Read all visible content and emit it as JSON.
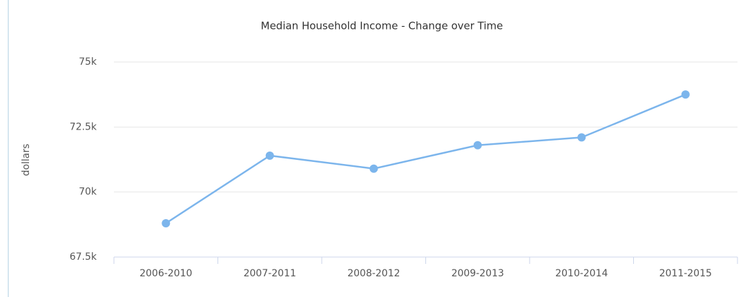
{
  "chart_data": {
    "type": "line",
    "title": "Median Household Income - Change over Time",
    "y_label": "dollars",
    "categories": [
      "2006-2010",
      "2007-2011",
      "2008-2012",
      "2009-2013",
      "2010-2014",
      "2011-2015"
    ],
    "series": [
      {
        "name": "Median Household Income",
        "color": "#7cb5ec",
        "values": [
          68800,
          71400,
          70900,
          71800,
          72100,
          73750
        ]
      }
    ],
    "ylim": [
      67500,
      75000
    ],
    "yticks": [
      {
        "value": 67500,
        "label": "67.5k"
      },
      {
        "value": 70000,
        "label": "70k"
      },
      {
        "value": 72500,
        "label": "72.5k"
      },
      {
        "value": 75000,
        "label": "75k"
      }
    ],
    "grid": true,
    "legend": false
  }
}
